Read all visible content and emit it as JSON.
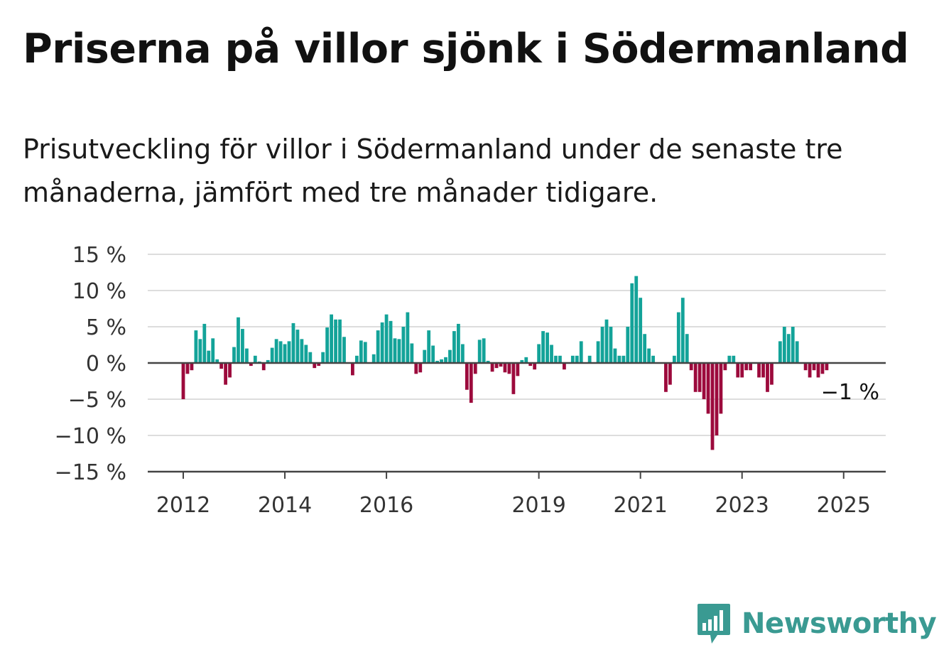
{
  "title": "Priserna på villor sjönk i Södermanland",
  "subtitle": "Prisutveckling för villor i Södermanland under de senaste tre månaderna, jämfört med tre månader tidigare.",
  "brand": {
    "name": "Newsworthy",
    "color": "#3a9a92",
    "icon": "bar-chart-speech-bubble-icon"
  },
  "colors": {
    "positive": "#13a399",
    "negative": "#9c0a3c",
    "grid": "#dddddd",
    "axis": "#444444"
  },
  "chart_data": {
    "type": "bar",
    "title": "Priserna på villor sjönk i Södermanland",
    "ylim": [
      -15,
      15
    ],
    "y_ticks": [
      15,
      10,
      5,
      0,
      -5,
      -10,
      -15
    ],
    "y_tick_labels": [
      "15 %",
      "10 %",
      "5 %",
      "0 %",
      "−5 %",
      "−10 %",
      "−15 %"
    ],
    "x_ticks": [
      2012,
      2014,
      2016,
      2019,
      2021,
      2023,
      2025
    ],
    "x_tick_labels": [
      "2012",
      "2014",
      "2016",
      "2019",
      "2021",
      "2023",
      "2025"
    ],
    "start": "2012-01",
    "frequency": "monthly",
    "grid": true,
    "end_label": "−1 %",
    "values": [
      -5,
      -1.5,
      -1,
      4.5,
      3.3,
      5.4,
      1.7,
      3.4,
      0.5,
      -0.8,
      -3,
      -2,
      2.2,
      6.3,
      4.7,
      2,
      -0.4,
      1,
      0.2,
      -1,
      0.4,
      2.1,
      3.3,
      3,
      2.6,
      3,
      5.5,
      4.6,
      3.3,
      2.5,
      1.5,
      -0.7,
      -0.4,
      1.5,
      4.9,
      6.7,
      6,
      6,
      3.6,
      0,
      -1.7,
      1,
      3.1,
      2.9,
      0,
      1.2,
      4.5,
      5.6,
      6.7,
      5.8,
      3.4,
      3.3,
      5,
      7,
      2.7,
      -1.5,
      -1.3,
      1.8,
      4.5,
      2.4,
      0.3,
      0.5,
      0.8,
      1.8,
      4.4,
      5.4,
      2.6,
      -3.7,
      -5.5,
      -1.5,
      3.2,
      3.4,
      0.3,
      -1.2,
      -0.7,
      -0.5,
      -1.3,
      -1.5,
      -4.3,
      -1.8,
      0.4,
      0.8,
      -0.4,
      -0.9,
      2.6,
      4.4,
      4.2,
      2.5,
      1,
      1,
      -0.9,
      0,
      1,
      1,
      3,
      0,
      1,
      0,
      3,
      5,
      6,
      5,
      2,
      1,
      1,
      5,
      11,
      12,
      9,
      4,
      2,
      1,
      0,
      0,
      -4,
      -3,
      1,
      7,
      9,
      4,
      -1,
      -4,
      -4,
      -5,
      -7,
      -12,
      -10,
      -7,
      -1,
      1,
      1,
      -2,
      -2,
      -1,
      -1,
      0,
      -2,
      -2,
      -4,
      -3,
      0,
      3,
      5,
      4,
      5,
      3,
      0,
      -1,
      -2,
      -1,
      -2,
      -1.5,
      -1
    ]
  }
}
